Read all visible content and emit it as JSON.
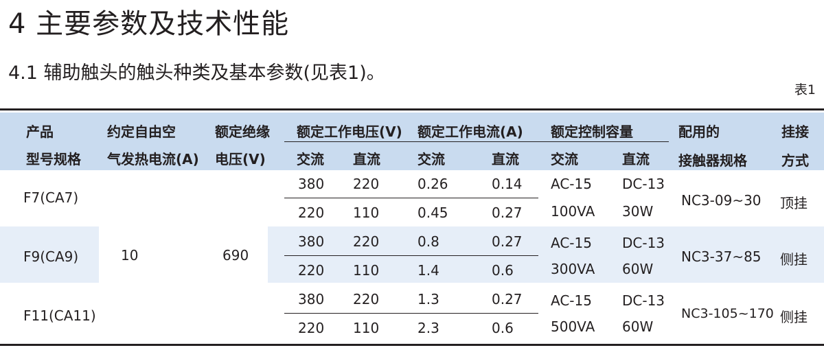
{
  "title": "4 主要参数及技术性能",
  "subtitle": "4.1 辅助触头的触头种类及基本参数(见表1)。",
  "table_tag": "表1",
  "header": {
    "product_1": "产品",
    "product_2": "型号规格",
    "thermal_1": "约定自由空",
    "thermal_2": "气发热电流(A)",
    "insulation_1": "额定绝缘",
    "insulation_2": "电压(V)",
    "voltage": "额定工作电压(V)",
    "current": "额定工作电流(A)",
    "capacity": "额定控制容量",
    "contactor_1": "配用的",
    "contactor_2": "接触器规格",
    "mount_1": "挂接",
    "mount_2": "方式",
    "ac": "交流",
    "dc": "直流"
  },
  "shared": {
    "thermal_current": "10",
    "insulation_voltage": "690"
  },
  "rows": [
    {
      "model": "F7(CA7)",
      "sub": [
        {
          "v_ac": "380",
          "v_dc": "220",
          "i_ac": "0.26",
          "i_dc": "0.14"
        },
        {
          "v_ac": "220",
          "v_dc": "110",
          "i_ac": "0.45",
          "i_dc": "0.27"
        }
      ],
      "cap_ac_1": "AC-15",
      "cap_ac_2": "100VA",
      "cap_dc_1": "DC-13",
      "cap_dc_2": "30W",
      "contactor": "NC3-09~30",
      "mount": "顶挂"
    },
    {
      "model": "F9(CA9)",
      "sub": [
        {
          "v_ac": "380",
          "v_dc": "220",
          "i_ac": "0.8",
          "i_dc": "0.27"
        },
        {
          "v_ac": "220",
          "v_dc": "110",
          "i_ac": "1.4",
          "i_dc": "0.6"
        }
      ],
      "cap_ac_1": "AC-15",
      "cap_ac_2": "300VA",
      "cap_dc_1": "DC-13",
      "cap_dc_2": "60W",
      "contactor": "NC3-37~85",
      "mount": "侧挂"
    },
    {
      "model": "F11(CA11)",
      "sub": [
        {
          "v_ac": "380",
          "v_dc": "220",
          "i_ac": "1.3",
          "i_dc": "0.27"
        },
        {
          "v_ac": "220",
          "v_dc": "110",
          "i_ac": "2.3",
          "i_dc": "0.6"
        }
      ],
      "cap_ac_1": "AC-15",
      "cap_ac_2": "500VA",
      "cap_dc_1": "DC-13",
      "cap_dc_2": "60W",
      "contactor": "NC3-105~170",
      "mount": "侧挂"
    }
  ]
}
